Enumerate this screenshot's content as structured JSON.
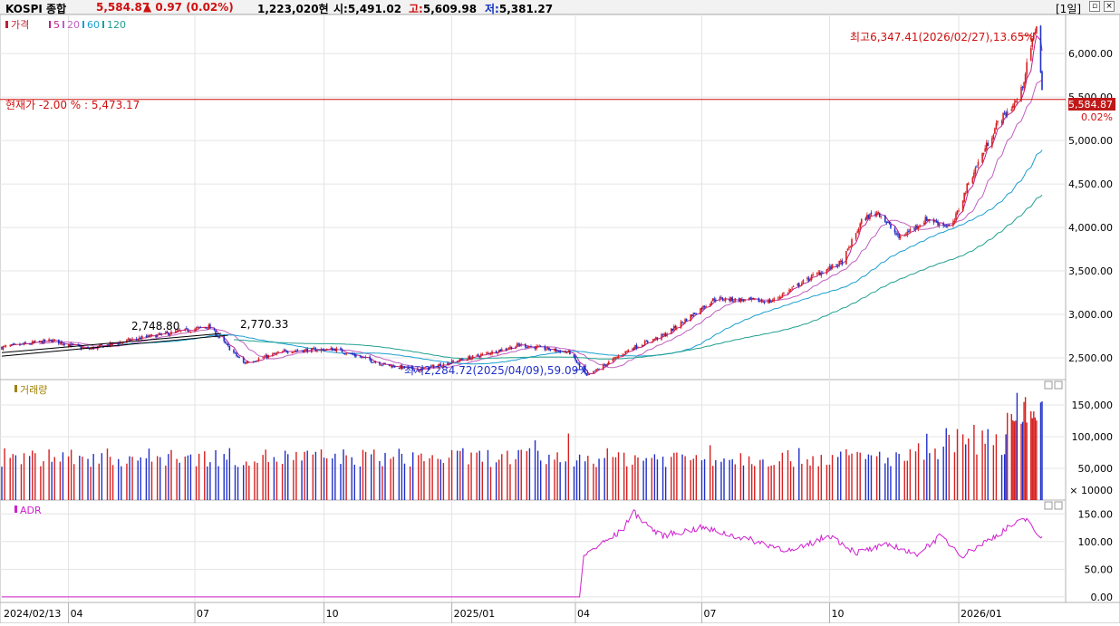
{
  "header": {
    "name": "KOSPI 종합",
    "price": "5,584.87",
    "change": "▲ 0.97 (0.02%)",
    "amount": "1,223,020현",
    "open_label": "시:",
    "open": "5,491.02",
    "high_label": "고:",
    "high": "5,609.98",
    "low_label": "저:",
    "low": "5,381.27",
    "period": "[1일]"
  },
  "price_panel": {
    "legend": {
      "price": "가격",
      "ma5": "5",
      "ma20": "20",
      "ma60": "60",
      "ma120": "120"
    },
    "y_ticks": [
      "6,000.00",
      "5,500.00",
      "5,000.00",
      "4,500.00",
      "4,000.00",
      "3,500.00",
      "3,000.00",
      "2,500.00"
    ],
    "current_label": "현재가 -2.00 % : 5,473.17",
    "last_price_tag": "5,584.87",
    "last_change_tag": "0.02%",
    "max_annotation": "최고6,347.41(2026/02/27),13.65%",
    "min_annotation": "최저2,284.72(2025/04/09),59.09%",
    "trend_label_1": "2,748.80",
    "trend_label_2": "2,770.33"
  },
  "volume_panel": {
    "legend": "거래량",
    "y_ticks": [
      "150,000",
      "100,000",
      "50,000"
    ],
    "unit": "× 10000"
  },
  "adr_panel": {
    "legend": "ADR",
    "y_ticks": [
      "150.00",
      "100.00",
      "50.00",
      "0.00"
    ]
  },
  "x_axis": [
    "2024/02/13",
    "04",
    "07",
    "10",
    "2025/01",
    "04",
    "07",
    "10",
    "2026/01"
  ],
  "colors": {
    "up": "#d62020",
    "down": "#2030c8",
    "ma5": "#c02090",
    "ma20": "#c060c0",
    "ma60": "#1a9fd0",
    "ma120": "#20a090",
    "adr": "#d020d0",
    "current_line": "#d01010"
  },
  "chart_data": {
    "type": "candlestick",
    "x_range": [
      "2024/02/13",
      "2026/03/03"
    ],
    "price_ylim": [
      2250,
      6450
    ],
    "price_anchors": [
      [
        "2024/02/13",
        2620
      ],
      [
        "2024/03/20",
        2700
      ],
      [
        "2024/04/15",
        2600
      ],
      [
        "2024/05/20",
        2720
      ],
      [
        "2024/07/11",
        2860
      ],
      [
        "2024/08/05",
        2440
      ],
      [
        "2024/09/05",
        2580
      ],
      [
        "2024/10/10",
        2600
      ],
      [
        "2024/11/15",
        2420
      ],
      [
        "2024/12/09",
        2360
      ],
      [
        "2025/01/20",
        2520
      ],
      [
        "2025/02/20",
        2650
      ],
      [
        "2025/03/28",
        2560
      ],
      [
        "2025/04/09",
        2284.72
      ],
      [
        "2025/05/10",
        2600
      ],
      [
        "2025/06/05",
        2770
      ],
      [
        "2025/07/10",
        3180
      ],
      [
        "2025/08/20",
        3150
      ],
      [
        "2025/09/20",
        3450
      ],
      [
        "2025/10/10",
        3600
      ],
      [
        "2025/10/25",
        4100
      ],
      [
        "2025/11/05",
        4180
      ],
      [
        "2025/11/20",
        3880
      ],
      [
        "2025/12/10",
        4100
      ],
      [
        "2025/12/28",
        4000
      ],
      [
        "2026/01/10",
        4550
      ],
      [
        "2026/01/30",
        5200
      ],
      [
        "2026/02/15",
        5500
      ],
      [
        "2026/02/27",
        6347.41
      ],
      [
        "2026/03/03",
        5584.87
      ]
    ],
    "volume_ylim": [
      0,
      190000
    ],
    "volume_note": "bars shown in units of 10000; typical 50,000–90,000, peak ~170,000 in Feb 2026",
    "adr_ylim": [
      -10,
      175
    ],
    "adr_anchors": [
      [
        "2024/02/13",
        0
      ],
      [
        "2025/04/05",
        0
      ],
      [
        "2025/04/07",
        75
      ],
      [
        "2025/05/05",
        120
      ],
      [
        "2025/05/12",
        155
      ],
      [
        "2025/06/01",
        110
      ],
      [
        "2025/07/01",
        125
      ],
      [
        "2025/08/10",
        100
      ],
      [
        "2025/09/05",
        82
      ],
      [
        "2025/10/01",
        112
      ],
      [
        "2025/10/20",
        80
      ],
      [
        "2025/11/15",
        95
      ],
      [
        "2025/12/01",
        75
      ],
      [
        "2025/12/20",
        110
      ],
      [
        "2026/01/05",
        75
      ],
      [
        "2026/02/10",
        130
      ],
      [
        "2026/02/22",
        142
      ],
      [
        "2026/03/01",
        95
      ],
      [
        "2026/03/03",
        110
      ]
    ]
  }
}
